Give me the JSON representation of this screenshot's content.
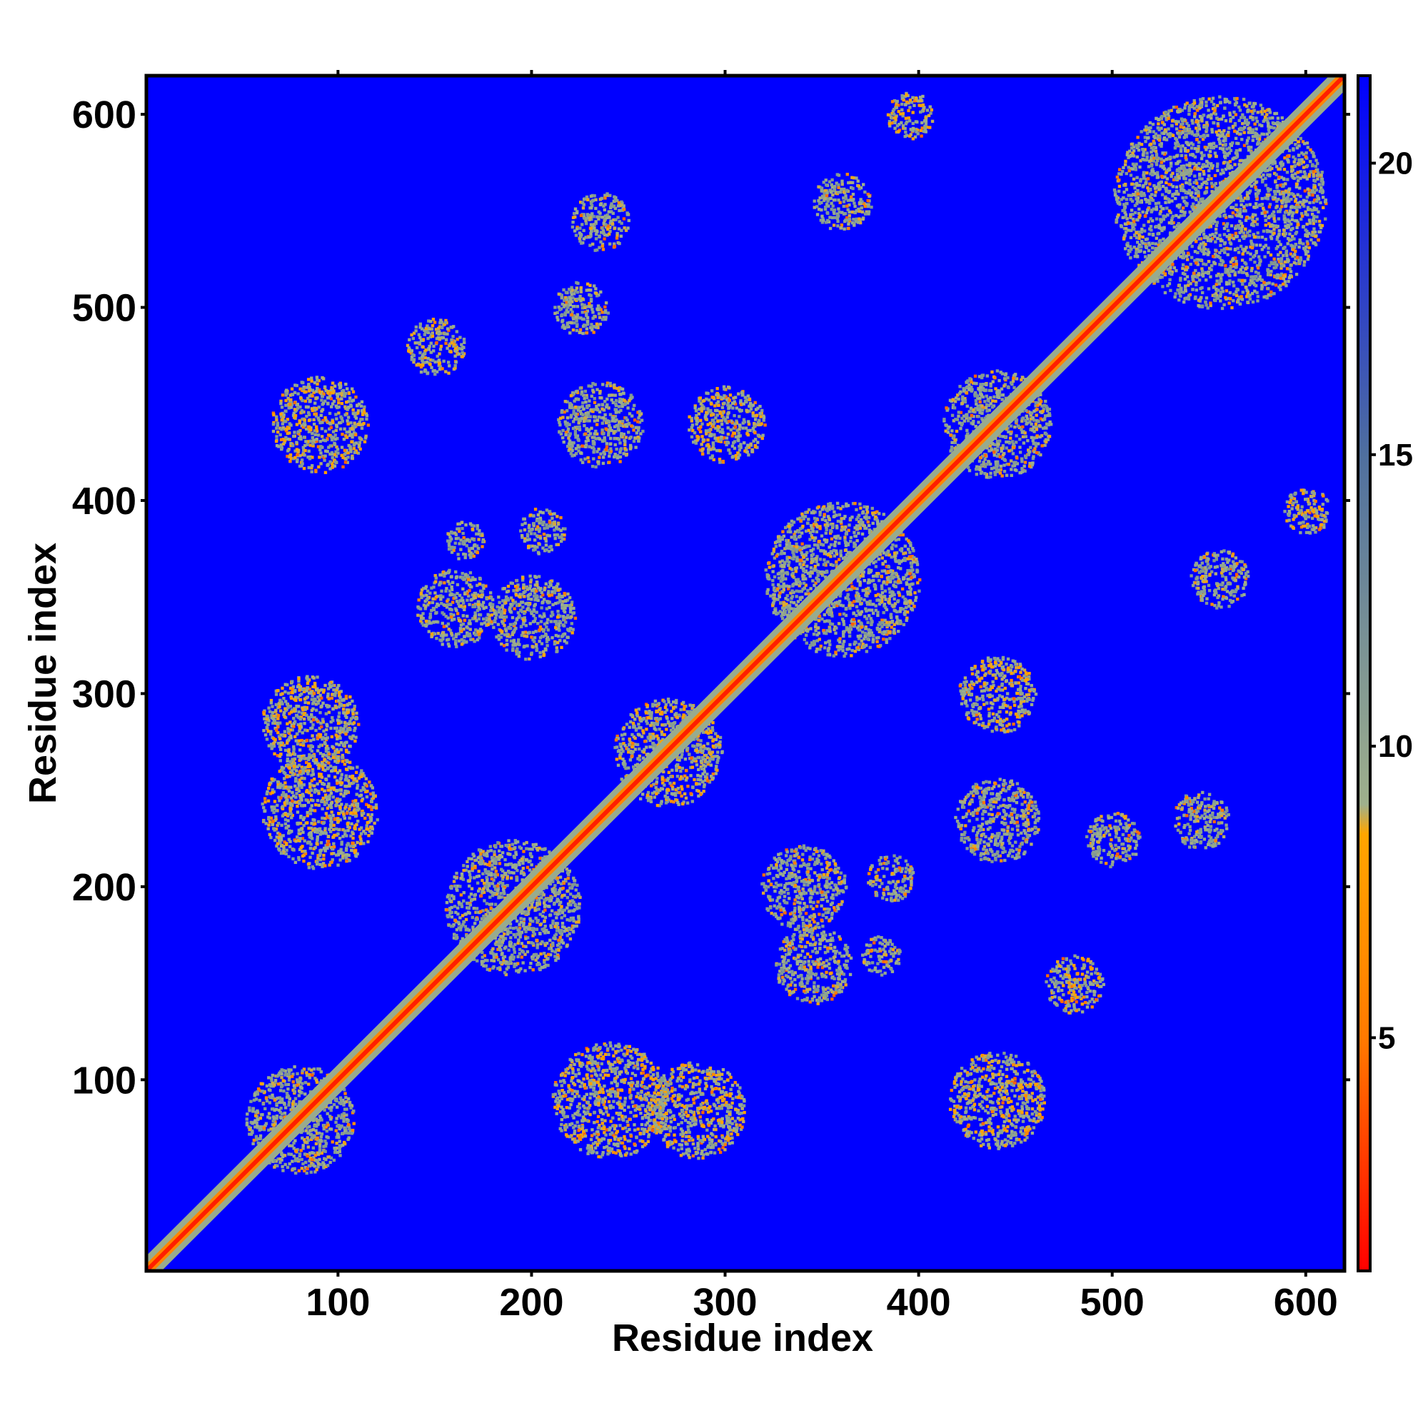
{
  "chart_data": {
    "type": "heatmap",
    "title": "",
    "xlabel": "Residue index",
    "ylabel": "Residue index",
    "xlim": [
      1,
      620
    ],
    "ylim": [
      1,
      620
    ],
    "x_ticks": [
      100,
      200,
      300,
      400,
      500,
      600
    ],
    "y_ticks": [
      100,
      200,
      300,
      400,
      500,
      600
    ],
    "colorbar": {
      "range": [
        1,
        21.5
      ],
      "ticks": [
        5,
        10,
        15,
        20
      ],
      "colors": [
        "#ff0000",
        "#ff7a00",
        "#ffa500",
        "#9fb08c",
        "#4f6f9f",
        "#0000ff"
      ],
      "color_stops": [
        1,
        5,
        8.5,
        9,
        15,
        21.5
      ]
    },
    "background_value": 21.5,
    "diagonal": {
      "core_value": 2,
      "halo_value": 9.5
    },
    "contact_regions": [
      {
        "x": 80,
        "y": 80,
        "spread": 28,
        "value": 10
      },
      {
        "x": 190,
        "y": 190,
        "spread": 35,
        "value": 10
      },
      {
        "x": 270,
        "y": 270,
        "spread": 28,
        "value": 9.5
      },
      {
        "x": 360,
        "y": 360,
        "spread": 40,
        "value": 10
      },
      {
        "x": 440,
        "y": 440,
        "spread": 28,
        "value": 10
      },
      {
        "x": 555,
        "y": 555,
        "spread": 55,
        "value": 10
      },
      {
        "x": 85,
        "y": 285,
        "spread": 25,
        "value": 9.5
      },
      {
        "x": 285,
        "y": 85,
        "spread": 25,
        "value": 9.5
      },
      {
        "x": 90,
        "y": 240,
        "spread": 30,
        "value": 9.5
      },
      {
        "x": 240,
        "y": 90,
        "spread": 30,
        "value": 9.5
      },
      {
        "x": 90,
        "y": 440,
        "spread": 25,
        "value": 9.5
      },
      {
        "x": 440,
        "y": 90,
        "spread": 25,
        "value": 9.5
      },
      {
        "x": 235,
        "y": 440,
        "spread": 22,
        "value": 10
      },
      {
        "x": 440,
        "y": 235,
        "spread": 22,
        "value": 10
      },
      {
        "x": 340,
        "y": 200,
        "spread": 22,
        "value": 10
      },
      {
        "x": 200,
        "y": 340,
        "spread": 22,
        "value": 10
      },
      {
        "x": 345,
        "y": 160,
        "spread": 20,
        "value": 10
      },
      {
        "x": 160,
        "y": 345,
        "spread": 20,
        "value": 10
      },
      {
        "x": 555,
        "y": 360,
        "spread": 15,
        "value": 10
      },
      {
        "x": 360,
        "y": 555,
        "spread": 15,
        "value": 10
      },
      {
        "x": 235,
        "y": 545,
        "spread": 15,
        "value": 10
      },
      {
        "x": 545,
        "y": 235,
        "spread": 15,
        "value": 10
      },
      {
        "x": 150,
        "y": 480,
        "spread": 15,
        "value": 9.5
      },
      {
        "x": 480,
        "y": 150,
        "spread": 15,
        "value": 9.5
      },
      {
        "x": 440,
        "y": 300,
        "spread": 20,
        "value": 9.5
      },
      {
        "x": 300,
        "y": 440,
        "spread": 20,
        "value": 9.5
      },
      {
        "x": 395,
        "y": 600,
        "spread": 12,
        "value": 9.5
      },
      {
        "x": 600,
        "y": 395,
        "spread": 12,
        "value": 9.5
      },
      {
        "x": 165,
        "y": 380,
        "spread": 10,
        "value": 10
      },
      {
        "x": 380,
        "y": 165,
        "spread": 10,
        "value": 10
      },
      {
        "x": 205,
        "y": 385,
        "spread": 12,
        "value": 10
      },
      {
        "x": 385,
        "y": 205,
        "spread": 12,
        "value": 10
      },
      {
        "x": 500,
        "y": 225,
        "spread": 14,
        "value": 10
      },
      {
        "x": 225,
        "y": 500,
        "spread": 14,
        "value": 10
      }
    ]
  }
}
